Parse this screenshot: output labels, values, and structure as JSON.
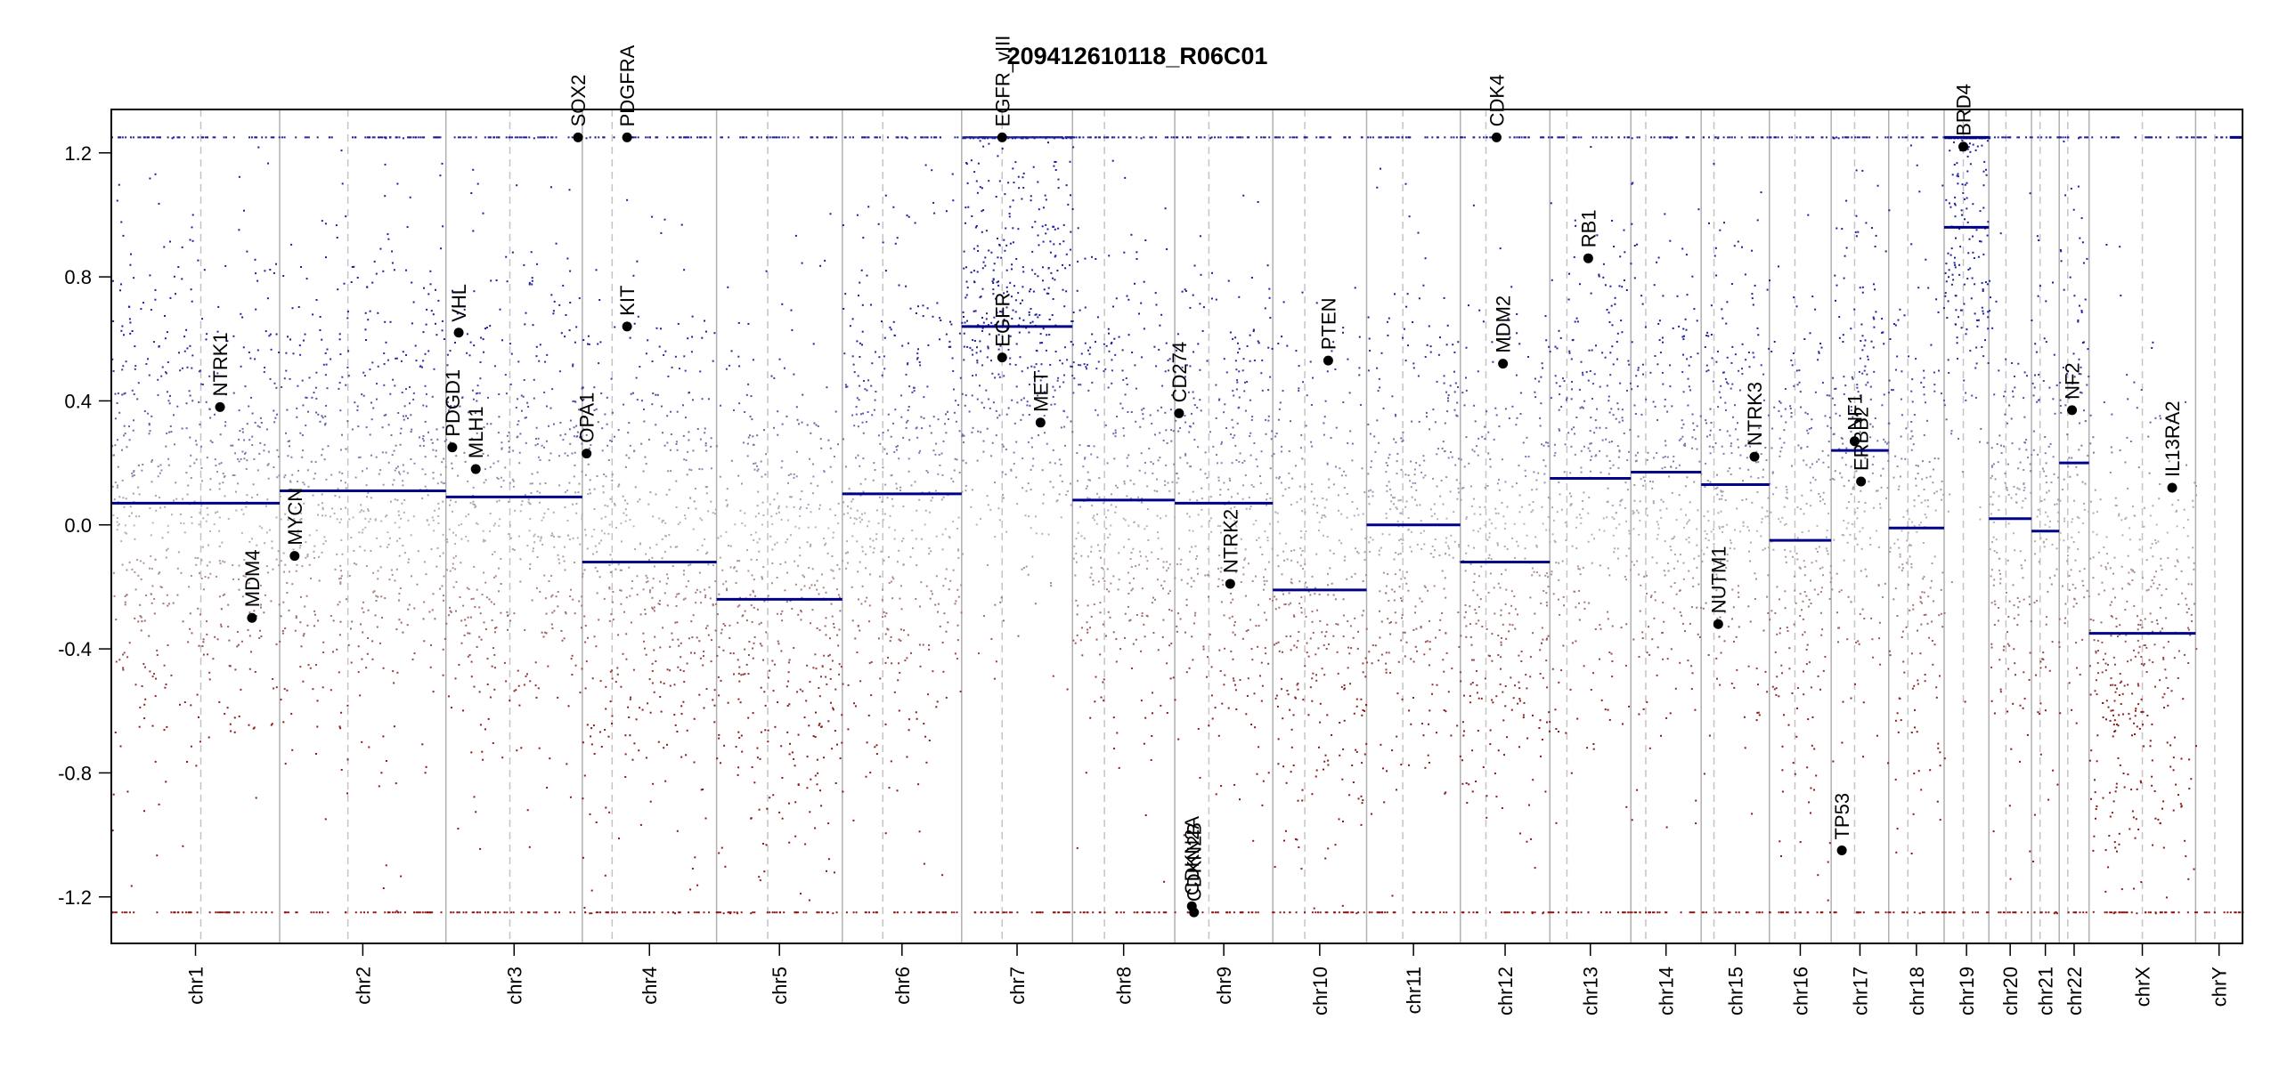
{
  "chart_data": {
    "type": "scatter",
    "title": "209412610118_R06C01",
    "xlabel": "",
    "ylabel": "",
    "ylim": [
      -1.35,
      1.34
    ],
    "y_ticks": [
      -1.2,
      -0.8,
      -0.4,
      0.0,
      0.4,
      0.8,
      1.2
    ],
    "y_tick_labels": [
      "-1.2",
      "-0.8",
      "-0.4",
      "0.0",
      "0.4",
      "0.8",
      "1.2"
    ],
    "clip_value": 1.25,
    "colors": {
      "gain": "#1f1f9c",
      "loss": "#8b1a1a",
      "neutral": "#b8b8b8",
      "segment": "#00008b",
      "boundary": "#b0b0b0"
    },
    "chromosomes": [
      {
        "name": "chr1",
        "start": 0.0,
        "end": 7.9,
        "centromere": 4.2,
        "segments": [
          {
            "x0": 0.0,
            "x1": 7.9,
            "y": 0.07
          }
        ]
      },
      {
        "name": "chr2",
        "start": 7.9,
        "end": 15.7,
        "centromere": 11.1,
        "segments": [
          {
            "x0": 7.9,
            "x1": 15.7,
            "y": 0.11
          }
        ]
      },
      {
        "name": "chr3",
        "start": 15.7,
        "end": 22.1,
        "centromere": 18.7,
        "segments": [
          {
            "x0": 15.7,
            "x1": 22.1,
            "y": 0.09
          }
        ]
      },
      {
        "name": "chr4",
        "start": 22.1,
        "end": 28.4,
        "centromere": 23.5,
        "segments": [
          {
            "x0": 22.1,
            "x1": 28.4,
            "y": -0.12
          }
        ]
      },
      {
        "name": "chr5",
        "start": 28.4,
        "end": 34.3,
        "centromere": 30.8,
        "segments": [
          {
            "x0": 28.4,
            "x1": 34.3,
            "y": -0.24
          }
        ]
      },
      {
        "name": "chr6",
        "start": 34.3,
        "end": 39.9,
        "centromere": 36.2,
        "segments": [
          {
            "x0": 34.3,
            "x1": 39.9,
            "y": 0.1
          }
        ]
      },
      {
        "name": "chr7",
        "start": 39.9,
        "end": 45.1,
        "centromere": 41.8,
        "segments": [
          {
            "x0": 39.9,
            "x1": 45.1,
            "y": 0.64
          }
        ]
      },
      {
        "name": "chr8",
        "start": 45.1,
        "end": 49.9,
        "centromere": 46.6,
        "segments": [
          {
            "x0": 45.1,
            "x1": 49.9,
            "y": 0.08
          }
        ]
      },
      {
        "name": "chr9",
        "start": 49.9,
        "end": 54.5,
        "centromere": 51.5,
        "segments": [
          {
            "x0": 49.9,
            "x1": 54.5,
            "y": 0.07
          }
        ]
      },
      {
        "name": "chr10",
        "start": 54.5,
        "end": 58.9,
        "centromere": 56.0,
        "segments": [
          {
            "x0": 54.5,
            "x1": 58.9,
            "y": -0.21
          }
        ]
      },
      {
        "name": "chr11",
        "start": 58.9,
        "end": 63.3,
        "centromere": 60.6,
        "segments": [
          {
            "x0": 58.9,
            "x1": 63.3,
            "y": 0.0
          }
        ]
      },
      {
        "name": "chr12",
        "start": 63.3,
        "end": 67.5,
        "centromere": 64.5,
        "segments": [
          {
            "x0": 63.3,
            "x1": 67.5,
            "y": -0.12
          }
        ]
      },
      {
        "name": "chr13",
        "start": 67.5,
        "end": 71.3,
        "centromere": 68.3,
        "segments": [
          {
            "x0": 67.5,
            "x1": 71.3,
            "y": 0.15
          }
        ]
      },
      {
        "name": "chr14",
        "start": 71.3,
        "end": 74.6,
        "centromere": 72.0,
        "segments": [
          {
            "x0": 71.3,
            "x1": 74.6,
            "y": 0.17
          }
        ]
      },
      {
        "name": "chr15",
        "start": 74.6,
        "end": 77.8,
        "centromere": 75.2,
        "segments": [
          {
            "x0": 74.6,
            "x1": 77.8,
            "y": 0.13
          }
        ]
      },
      {
        "name": "chr16",
        "start": 77.8,
        "end": 80.7,
        "centromere": 79.0,
        "segments": [
          {
            "x0": 77.8,
            "x1": 80.7,
            "y": -0.05
          }
        ]
      },
      {
        "name": "chr17",
        "start": 80.7,
        "end": 83.4,
        "centromere": 81.8,
        "segments": [
          {
            "x0": 80.7,
            "x1": 83.4,
            "y": 0.24
          }
        ]
      },
      {
        "name": "chr18",
        "start": 83.4,
        "end": 86.0,
        "centromere": 84.3,
        "segments": [
          {
            "x0": 83.4,
            "x1": 86.0,
            "y": -0.01
          }
        ]
      },
      {
        "name": "chr19",
        "start": 86.0,
        "end": 88.1,
        "centromere": 86.9,
        "segments": [
          {
            "x0": 86.0,
            "x1": 88.1,
            "y": 0.96
          },
          {
            "x0": 86.0,
            "x1": 88.1,
            "y": 1.25
          }
        ]
      },
      {
        "name": "chr20",
        "start": 88.1,
        "end": 90.1,
        "centromere": 88.9,
        "segments": [
          {
            "x0": 88.1,
            "x1": 90.1,
            "y": 0.02
          }
        ]
      },
      {
        "name": "chr21",
        "start": 90.1,
        "end": 91.4,
        "centromere": 90.5,
        "segments": [
          {
            "x0": 90.1,
            "x1": 91.4,
            "y": -0.02
          }
        ]
      },
      {
        "name": "chr22",
        "start": 91.4,
        "end": 92.8,
        "centromere": 91.8,
        "segments": [
          {
            "x0": 91.4,
            "x1": 92.8,
            "y": 0.2
          }
        ]
      },
      {
        "name": "chrX",
        "start": 92.8,
        "end": 97.8,
        "centromere": 95.3,
        "segments": [
          {
            "x0": 92.8,
            "x1": 97.8,
            "y": -0.35
          }
        ]
      },
      {
        "name": "chrY",
        "start": 97.8,
        "end": 100.0,
        "centromere": 98.7,
        "segments": [
          {
            "x0": 99.4,
            "x1": 100.0,
            "y": 1.25
          }
        ]
      }
    ],
    "dense_top_ranges": [
      [
        39.9,
        45.1
      ],
      [
        86.0,
        88.1
      ]
    ],
    "genes": [
      {
        "name": "NTRK1",
        "x": 5.1,
        "y": 0.38
      },
      {
        "name": "MDM4",
        "x": 6.6,
        "y": -0.3
      },
      {
        "name": "MYCN",
        "x": 8.6,
        "y": -0.1
      },
      {
        "name": "PDGD1",
        "x": 16.0,
        "y": 0.25
      },
      {
        "name": "VHL",
        "x": 16.3,
        "y": 0.62
      },
      {
        "name": "MLH1",
        "x": 17.1,
        "y": 0.18
      },
      {
        "name": "SOX2",
        "x": 21.9,
        "y": 1.25
      },
      {
        "name": "OPA1",
        "x": 22.3,
        "y": 0.23
      },
      {
        "name": "PDGFRA",
        "x": 24.2,
        "y": 1.25
      },
      {
        "name": "KIT",
        "x": 24.2,
        "y": 0.64
      },
      {
        "name": "EGFR_vIII",
        "x": 41.8,
        "y": 1.25
      },
      {
        "name": "EGFR",
        "x": 41.8,
        "y": 0.54
      },
      {
        "name": "MET",
        "x": 43.6,
        "y": 0.33
      },
      {
        "name": "CD274",
        "x": 50.1,
        "y": 0.36
      },
      {
        "name": "CDKN2A",
        "x": 50.7,
        "y": -1.23
      },
      {
        "name": "CDKN2B",
        "x": 50.8,
        "y": -1.25
      },
      {
        "name": "NTRK2",
        "x": 52.5,
        "y": -0.19
      },
      {
        "name": "PTEN",
        "x": 57.1,
        "y": 0.53
      },
      {
        "name": "CDK4",
        "x": 65.0,
        "y": 1.25
      },
      {
        "name": "MDM2",
        "x": 65.3,
        "y": 0.52
      },
      {
        "name": "RB1",
        "x": 69.3,
        "y": 0.86
      },
      {
        "name": "NUTM1",
        "x": 75.4,
        "y": -0.32
      },
      {
        "name": "NTRK3",
        "x": 77.1,
        "y": 0.22
      },
      {
        "name": "TP53",
        "x": 81.2,
        "y": -1.05
      },
      {
        "name": "NF1",
        "x": 81.8,
        "y": 0.27
      },
      {
        "name": "ERBB2",
        "x": 82.1,
        "y": 0.14
      },
      {
        "name": "BRD4",
        "x": 86.9,
        "y": 1.22
      },
      {
        "name": "NF2",
        "x": 92.0,
        "y": 0.37
      },
      {
        "name": "IL13RA2",
        "x": 96.7,
        "y": 0.12
      }
    ]
  }
}
